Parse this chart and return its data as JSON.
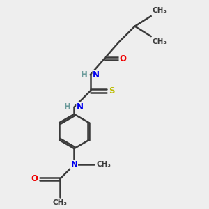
{
  "background_color": "#eeeeee",
  "atom_colors": {
    "C": "#3a3a3a",
    "N": "#0000ee",
    "O": "#ee0000",
    "S": "#bbbb00",
    "H": "#6a9a9a"
  },
  "bond_color": "#3a3a3a",
  "bond_width": 1.8,
  "figsize": [
    3.0,
    3.0
  ],
  "dpi": 100,
  "xlim": [
    0,
    10
  ],
  "ylim": [
    0,
    10
  ]
}
